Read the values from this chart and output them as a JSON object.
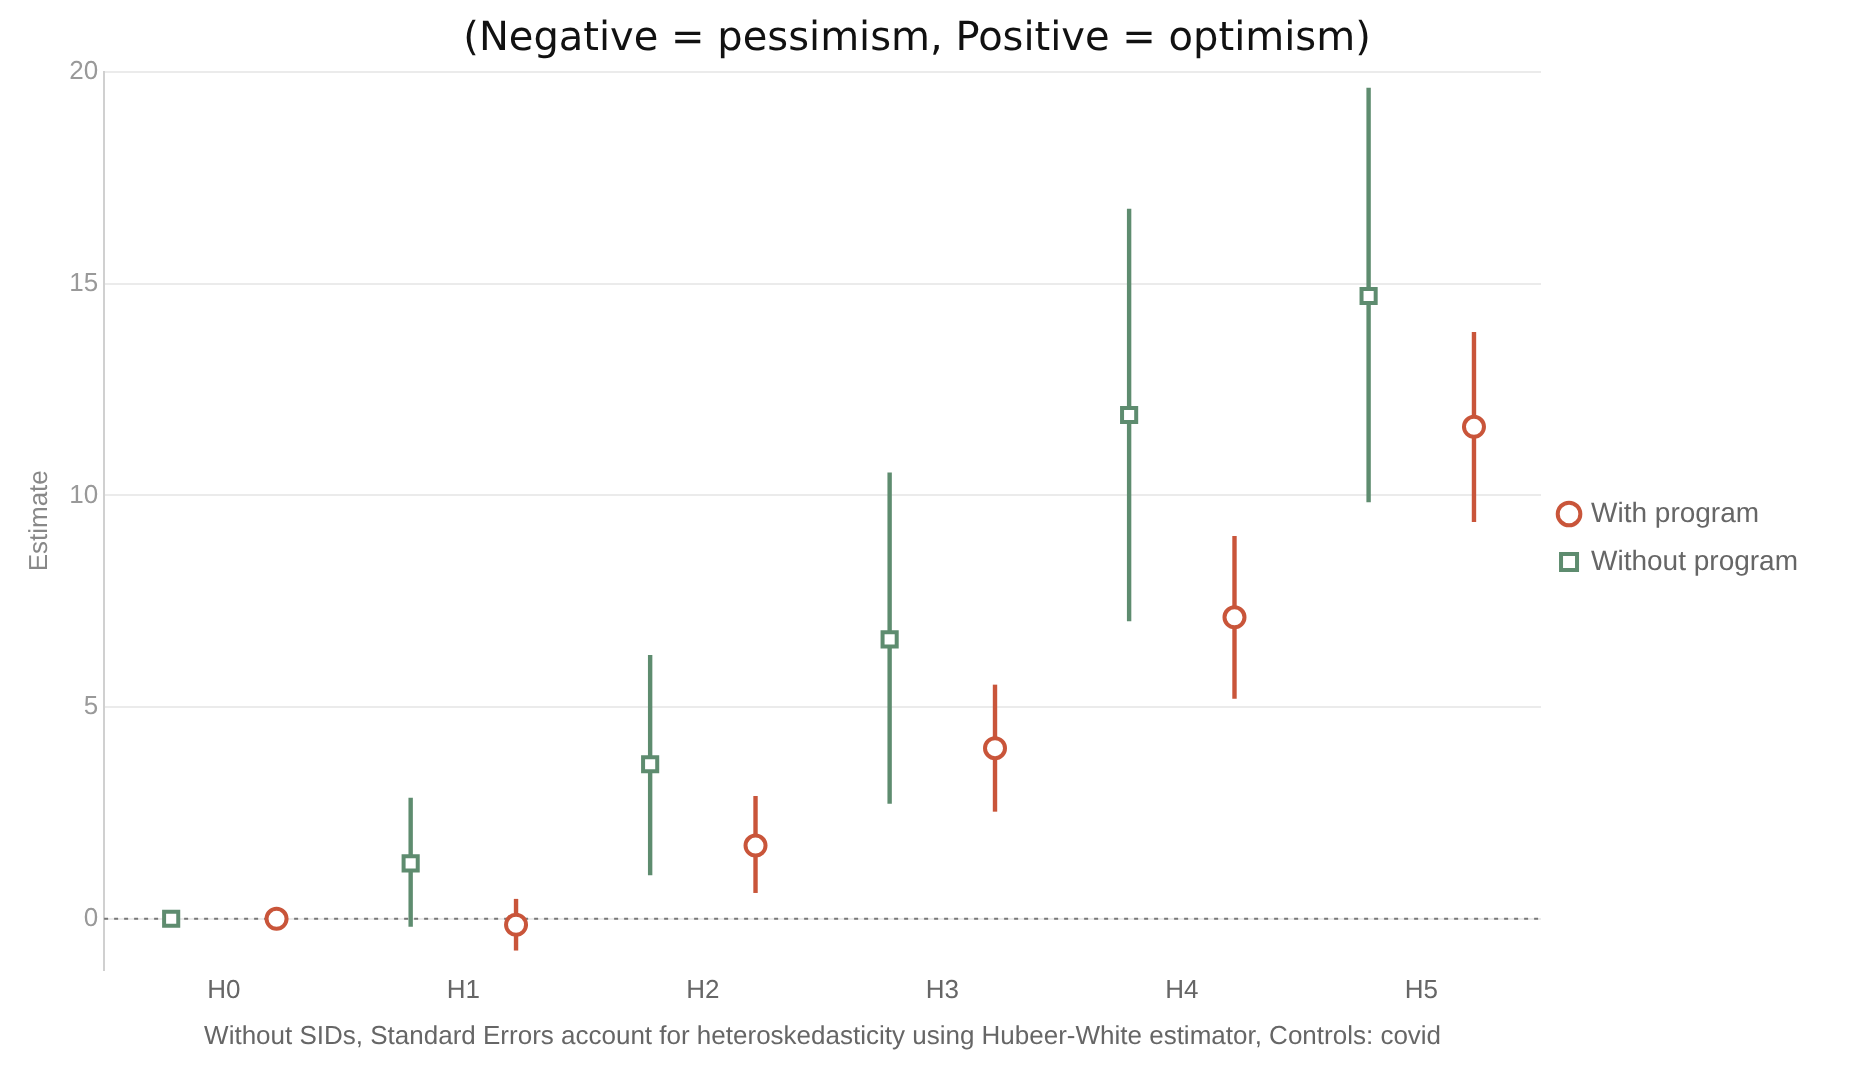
{
  "chart_data": {
    "type": "scatter",
    "title": "(Negative = pessimism, Positive = optimism)",
    "ylabel": "Estimate",
    "categories": [
      "H0",
      "H1",
      "H2",
      "H3",
      "H4",
      "H5"
    ],
    "series": [
      {
        "name": "With program",
        "color": "#c9553a",
        "marker": "circle",
        "values": [
          0,
          -0.14,
          1.73,
          4.03,
          7.12,
          11.62
        ],
        "errors": [
          null,
          [
            -0.75,
            0.47
          ],
          [
            0.61,
            2.9
          ],
          [
            2.53,
            5.53
          ],
          [
            5.2,
            9.04
          ],
          [
            9.37,
            13.86
          ]
        ]
      },
      {
        "name": "Without program",
        "color": "#5e8c6f",
        "marker": "square",
        "values": [
          0,
          1.31,
          3.65,
          6.6,
          11.9,
          14.71
        ],
        "errors": [
          null,
          [
            -0.19,
            2.86
          ],
          [
            1.03,
            6.23
          ],
          [
            2.72,
            10.54
          ],
          [
            7.03,
            16.77
          ],
          [
            9.84,
            19.63
          ]
        ]
      }
    ],
    "ylim": [
      -1.2,
      20
    ],
    "yticks": [
      0,
      5,
      10,
      15,
      20
    ],
    "grid": "y",
    "legend": "right",
    "ref_lines": [
      {
        "axis": "y",
        "value": 0,
        "color": "#777777",
        "line_style": "dotted"
      }
    ],
    "annotations": [
      "Without SIDs, Standard Errors account for heteroskedasticity using Hubeer-White estimator, Controls: covid"
    ]
  }
}
